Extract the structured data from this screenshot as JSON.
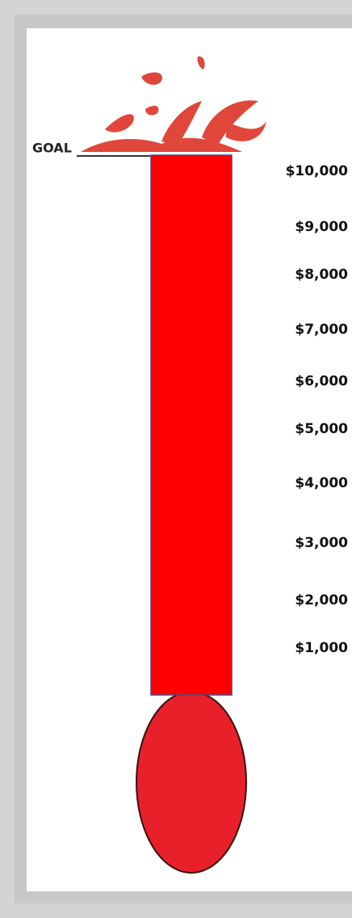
{
  "thermometer": {
    "goal_label": "GOAL",
    "scale_labels": [
      "$10,000",
      "$9,000",
      "$8,000",
      "$7,000",
      "$6,000",
      "$5,000",
      "$4,000",
      "$3,000",
      "$2,000",
      "$1,000"
    ]
  }
}
